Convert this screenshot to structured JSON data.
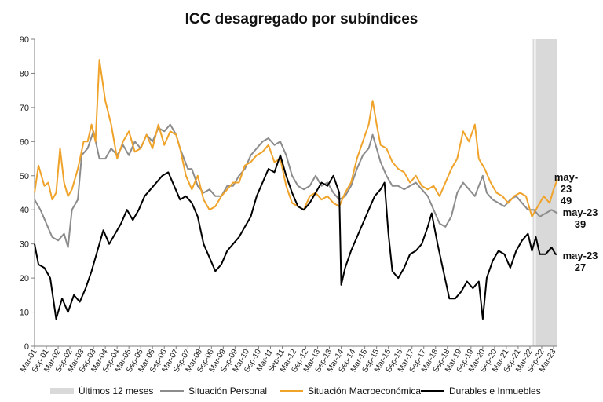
{
  "chart_data": {
    "type": "line",
    "title": "ICC desagregado por subíndices",
    "xlabel": "",
    "ylabel": "",
    "ylim": [
      0,
      90
    ],
    "yticks": [
      0,
      10,
      20,
      30,
      40,
      50,
      60,
      70,
      80,
      90
    ],
    "grid": false,
    "x_start": "Mar-01",
    "x_end": "May-23",
    "x_tick_labels": [
      "Mar-01",
      "Sep-01",
      "Mar-02",
      "Sep-02",
      "Mar-03",
      "Sep-03",
      "Mar-04",
      "Sep-04",
      "Mar-05",
      "Sep-05",
      "Mar-06",
      "Sep-06",
      "Mar-07",
      "Sep-07",
      "Mar-08",
      "Sep-08",
      "Mar-09",
      "Sep-09",
      "Mar-10",
      "Sep-10",
      "Mar-11",
      "Sep-11",
      "Mar-12",
      "Sep-12",
      "Mar-13",
      "Sep-13",
      "Mar-14",
      "Sep-14",
      "Mar-15",
      "Sep-15",
      "Mar-16",
      "Sep-16",
      "Mar-17",
      "Sep-17",
      "Mar-18",
      "Sep-18",
      "Mar-19",
      "Sep-19",
      "Mar-20",
      "Sep-20",
      "Mar-21",
      "Sep-21",
      "Mar-22",
      "Sep-22",
      "Mar-23"
    ],
    "shaded_period": {
      "label": "Últimos 12 meses",
      "from": "Jun-22",
      "to": "May-23",
      "color": "#d9d9d9"
    },
    "legend": {
      "placement": "bottom"
    },
    "series": [
      {
        "name": "Situación Personal",
        "color": "#8c8c8c",
        "anchors": [
          [
            "Mar-01",
            43
          ],
          [
            "Jun-01",
            40
          ],
          [
            "Sep-01",
            36
          ],
          [
            "Dec-01",
            32
          ],
          [
            "Mar-02",
            31
          ],
          [
            "Jun-02",
            33
          ],
          [
            "Aug-02",
            29
          ],
          [
            "Oct-02",
            40
          ],
          [
            "Jan-03",
            43
          ],
          [
            "Mar-03",
            56
          ],
          [
            "Jun-03",
            58
          ],
          [
            "Sep-03",
            63
          ],
          [
            "Dec-03",
            55
          ],
          [
            "Mar-04",
            55
          ],
          [
            "Jun-04",
            58
          ],
          [
            "Sep-04",
            56
          ],
          [
            "Dec-04",
            59
          ],
          [
            "Mar-05",
            56
          ],
          [
            "Jun-05",
            60
          ],
          [
            "Sep-05",
            58
          ],
          [
            "Dec-05",
            62
          ],
          [
            "Mar-06",
            60
          ],
          [
            "Jun-06",
            64
          ],
          [
            "Sep-06",
            63
          ],
          [
            "Dec-06",
            65
          ],
          [
            "Mar-07",
            62
          ],
          [
            "May-07",
            58
          ],
          [
            "Jul-07",
            55
          ],
          [
            "Sep-07",
            52
          ],
          [
            "Nov-07",
            52
          ],
          [
            "Feb-08",
            47
          ],
          [
            "May-08",
            45
          ],
          [
            "Aug-08",
            46
          ],
          [
            "Nov-08",
            44
          ],
          [
            "Feb-09",
            44
          ],
          [
            "May-09",
            47
          ],
          [
            "Aug-09",
            47
          ],
          [
            "Nov-09",
            50
          ],
          [
            "Feb-10",
            52
          ],
          [
            "May-10",
            56
          ],
          [
            "Aug-10",
            58
          ],
          [
            "Nov-10",
            60
          ],
          [
            "Feb-11",
            61
          ],
          [
            "May-11",
            59
          ],
          [
            "Aug-11",
            60
          ],
          [
            "Nov-11",
            56
          ],
          [
            "Feb-12",
            50
          ],
          [
            "May-12",
            47
          ],
          [
            "Aug-12",
            46
          ],
          [
            "Nov-12",
            47
          ],
          [
            "Feb-13",
            50
          ],
          [
            "May-13",
            47
          ],
          [
            "Aug-13",
            48
          ],
          [
            "Nov-13",
            45
          ],
          [
            "Feb-14",
            43
          ],
          [
            "May-14",
            44
          ],
          [
            "Aug-14",
            47
          ],
          [
            "Nov-14",
            52
          ],
          [
            "Feb-15",
            56
          ],
          [
            "May-15",
            58
          ],
          [
            "Jul-15",
            62
          ],
          [
            "Sep-15",
            58
          ],
          [
            "Nov-15",
            54
          ],
          [
            "Feb-16",
            50
          ],
          [
            "May-16",
            47
          ],
          [
            "Aug-16",
            47
          ],
          [
            "Nov-16",
            46
          ],
          [
            "Feb-17",
            47
          ],
          [
            "May-17",
            48
          ],
          [
            "Aug-17",
            46
          ],
          [
            "Nov-17",
            44
          ],
          [
            "Feb-18",
            40
          ],
          [
            "May-18",
            36
          ],
          [
            "Aug-18",
            35
          ],
          [
            "Nov-18",
            38
          ],
          [
            "Feb-19",
            45
          ],
          [
            "May-19",
            48
          ],
          [
            "Aug-19",
            46
          ],
          [
            "Nov-19",
            44
          ],
          [
            "Jan-20",
            47
          ],
          [
            "Mar-20",
            50
          ],
          [
            "May-20",
            45
          ],
          [
            "Aug-20",
            43
          ],
          [
            "Nov-20",
            42
          ],
          [
            "Feb-21",
            41
          ],
          [
            "May-21",
            43
          ],
          [
            "Aug-21",
            44
          ],
          [
            "Nov-21",
            42
          ],
          [
            "Feb-22",
            40
          ],
          [
            "May-22",
            40
          ],
          [
            "Aug-22",
            38
          ],
          [
            "Nov-22",
            39
          ],
          [
            "Feb-23",
            40
          ],
          [
            "May-23",
            39
          ]
        ]
      },
      {
        "name": "Situación Macroeconómica",
        "color": "#f0a32a",
        "anchors": [
          [
            "Mar-01",
            45
          ],
          [
            "May-01",
            53
          ],
          [
            "Aug-01",
            47
          ],
          [
            "Oct-01",
            48
          ],
          [
            "Dec-01",
            43
          ],
          [
            "Feb-02",
            45
          ],
          [
            "Apr-02",
            58
          ],
          [
            "Jun-02",
            48
          ],
          [
            "Aug-02",
            44
          ],
          [
            "Oct-02",
            46
          ],
          [
            "Jan-03",
            52
          ],
          [
            "Apr-03",
            60
          ],
          [
            "Jun-03",
            60
          ],
          [
            "Aug-03",
            65
          ],
          [
            "Oct-03",
            60
          ],
          [
            "Dec-03",
            84
          ],
          [
            "Mar-04",
            72
          ],
          [
            "Jun-04",
            65
          ],
          [
            "Sep-04",
            55
          ],
          [
            "Dec-04",
            60
          ],
          [
            "Mar-05",
            63
          ],
          [
            "Jun-05",
            57
          ],
          [
            "Sep-05",
            58
          ],
          [
            "Dec-05",
            62
          ],
          [
            "Mar-06",
            58
          ],
          [
            "Jun-06",
            65
          ],
          [
            "Sep-06",
            59
          ],
          [
            "Dec-06",
            63
          ],
          [
            "Mar-07",
            62
          ],
          [
            "May-07",
            58
          ],
          [
            "Aug-07",
            50
          ],
          [
            "Nov-07",
            46
          ],
          [
            "Feb-08",
            50
          ],
          [
            "May-08",
            43
          ],
          [
            "Aug-08",
            40
          ],
          [
            "Nov-08",
            41
          ],
          [
            "Feb-09",
            44
          ],
          [
            "May-09",
            46
          ],
          [
            "Aug-09",
            48
          ],
          [
            "Nov-09",
            48
          ],
          [
            "Feb-10",
            53
          ],
          [
            "May-10",
            54
          ],
          [
            "Aug-10",
            56
          ],
          [
            "Nov-10",
            57
          ],
          [
            "Feb-11",
            59
          ],
          [
            "May-11",
            54
          ],
          [
            "Aug-11",
            55
          ],
          [
            "Nov-11",
            47
          ],
          [
            "Feb-12",
            42
          ],
          [
            "May-12",
            41
          ],
          [
            "Aug-12",
            40
          ],
          [
            "Nov-12",
            44
          ],
          [
            "Feb-13",
            45
          ],
          [
            "May-13",
            43
          ],
          [
            "Aug-13",
            44
          ],
          [
            "Nov-13",
            42
          ],
          [
            "Feb-14",
            41
          ],
          [
            "May-14",
            45
          ],
          [
            "Aug-14",
            48
          ],
          [
            "Nov-14",
            55
          ],
          [
            "Feb-15",
            60
          ],
          [
            "May-15",
            65
          ],
          [
            "Jul-15",
            72
          ],
          [
            "Sep-15",
            65
          ],
          [
            "Nov-15",
            59
          ],
          [
            "Feb-16",
            58
          ],
          [
            "May-16",
            54
          ],
          [
            "Aug-16",
            52
          ],
          [
            "Nov-16",
            51
          ],
          [
            "Feb-17",
            48
          ],
          [
            "May-17",
            50
          ],
          [
            "Aug-17",
            47
          ],
          [
            "Nov-17",
            46
          ],
          [
            "Feb-18",
            47
          ],
          [
            "May-18",
            44
          ],
          [
            "Aug-18",
            48
          ],
          [
            "Nov-18",
            52
          ],
          [
            "Feb-19",
            55
          ],
          [
            "May-19",
            63
          ],
          [
            "Aug-19",
            60
          ],
          [
            "Nov-19",
            65
          ],
          [
            "Jan-20",
            55
          ],
          [
            "Apr-20",
            52
          ],
          [
            "Jul-20",
            48
          ],
          [
            "Oct-20",
            45
          ],
          [
            "Jan-21",
            44
          ],
          [
            "Apr-21",
            42
          ],
          [
            "Jul-21",
            44
          ],
          [
            "Oct-21",
            45
          ],
          [
            "Jan-22",
            44
          ],
          [
            "Apr-22",
            38
          ],
          [
            "Jul-22",
            41
          ],
          [
            "Oct-22",
            44
          ],
          [
            "Jan-23",
            42
          ],
          [
            "Mar-23",
            46
          ],
          [
            "May-23",
            49
          ]
        ]
      },
      {
        "name": "Durables e Inmuebles",
        "color": "#000000",
        "anchors": [
          [
            "Mar-01",
            30
          ],
          [
            "May-01",
            24
          ],
          [
            "Aug-01",
            23
          ],
          [
            "Nov-01",
            20
          ],
          [
            "Feb-02",
            8
          ],
          [
            "May-02",
            14
          ],
          [
            "Aug-02",
            10
          ],
          [
            "Nov-02",
            15
          ],
          [
            "Feb-03",
            13
          ],
          [
            "May-03",
            17
          ],
          [
            "Aug-03",
            22
          ],
          [
            "Nov-03",
            28
          ],
          [
            "Feb-04",
            34
          ],
          [
            "May-04",
            30
          ],
          [
            "Aug-04",
            33
          ],
          [
            "Nov-04",
            36
          ],
          [
            "Feb-05",
            40
          ],
          [
            "May-05",
            37
          ],
          [
            "Aug-05",
            40
          ],
          [
            "Nov-05",
            44
          ],
          [
            "Feb-06",
            46
          ],
          [
            "May-06",
            48
          ],
          [
            "Aug-06",
            50
          ],
          [
            "Nov-06",
            51
          ],
          [
            "Feb-07",
            47
          ],
          [
            "May-07",
            43
          ],
          [
            "Aug-07",
            44
          ],
          [
            "Nov-07",
            42
          ],
          [
            "Feb-08",
            38
          ],
          [
            "May-08",
            30
          ],
          [
            "Aug-08",
            26
          ],
          [
            "Nov-08",
            22
          ],
          [
            "Feb-09",
            24
          ],
          [
            "May-09",
            28
          ],
          [
            "Aug-09",
            30
          ],
          [
            "Nov-09",
            32
          ],
          [
            "Feb-10",
            35
          ],
          [
            "May-10",
            38
          ],
          [
            "Aug-10",
            44
          ],
          [
            "Nov-10",
            48
          ],
          [
            "Feb-11",
            52
          ],
          [
            "May-11",
            51
          ],
          [
            "Aug-11",
            56
          ],
          [
            "Nov-11",
            50
          ],
          [
            "Feb-12",
            45
          ],
          [
            "May-12",
            41
          ],
          [
            "Aug-12",
            40
          ],
          [
            "Nov-12",
            42
          ],
          [
            "Feb-13",
            45
          ],
          [
            "May-13",
            48
          ],
          [
            "Aug-13",
            47
          ],
          [
            "Nov-13",
            50
          ],
          [
            "Feb-14",
            45
          ],
          [
            "Mar-14",
            18
          ],
          [
            "May-14",
            23
          ],
          [
            "Aug-14",
            28
          ],
          [
            "Nov-14",
            32
          ],
          [
            "Feb-15",
            36
          ],
          [
            "May-15",
            40
          ],
          [
            "Aug-15",
            44
          ],
          [
            "Nov-15",
            46
          ],
          [
            "Jan-16",
            48
          ],
          [
            "Mar-16",
            33
          ],
          [
            "May-16",
            22
          ],
          [
            "Aug-16",
            20
          ],
          [
            "Nov-16",
            23
          ],
          [
            "Feb-17",
            27
          ],
          [
            "May-17",
            28
          ],
          [
            "Aug-17",
            30
          ],
          [
            "Nov-17",
            35
          ],
          [
            "Jan-18",
            39
          ],
          [
            "Apr-18",
            30
          ],
          [
            "Jul-18",
            22
          ],
          [
            "Oct-18",
            14
          ],
          [
            "Jan-19",
            14
          ],
          [
            "Apr-19",
            16
          ],
          [
            "Jul-19",
            19
          ],
          [
            "Oct-19",
            17
          ],
          [
            "Jan-20",
            19
          ],
          [
            "Mar-20",
            8
          ],
          [
            "May-20",
            20
          ],
          [
            "Aug-20",
            25
          ],
          [
            "Nov-20",
            28
          ],
          [
            "Feb-21",
            27
          ],
          [
            "May-21",
            23
          ],
          [
            "Aug-21",
            28
          ],
          [
            "Nov-21",
            31
          ],
          [
            "Feb-22",
            33
          ],
          [
            "Apr-22",
            28
          ],
          [
            "Jun-22",
            32
          ],
          [
            "Aug-22",
            27
          ],
          [
            "Nov-22",
            27
          ],
          [
            "Feb-23",
            29
          ],
          [
            "Apr-23",
            27
          ],
          [
            "May-23",
            27
          ]
        ]
      }
    ],
    "end_labels": [
      {
        "period": "may-23",
        "value": "49",
        "series": "Situación Macroeconómica"
      },
      {
        "period": "may-23",
        "value": "39",
        "series": "Situación Personal"
      },
      {
        "period": "may-23",
        "value": "27",
        "series": "Durables e Inmuebles"
      }
    ]
  }
}
